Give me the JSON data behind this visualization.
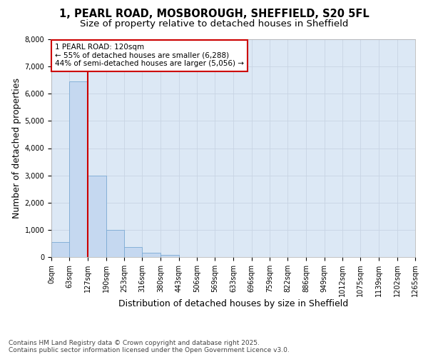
{
  "title_line1": "1, PEARL ROAD, MOSBOROUGH, SHEFFIELD, S20 5FL",
  "title_line2": "Size of property relative to detached houses in Sheffield",
  "xlabel": "Distribution of detached houses by size in Sheffield",
  "ylabel": "Number of detached properties",
  "bar_edges": [
    0,
    63,
    127,
    190,
    253,
    316,
    380,
    443,
    506,
    569,
    633,
    696,
    759,
    822,
    886,
    949,
    1012,
    1075,
    1139,
    1202,
    1265
  ],
  "bar_heights": [
    550,
    6450,
    3000,
    1000,
    380,
    150,
    80,
    0,
    0,
    0,
    0,
    0,
    0,
    0,
    0,
    0,
    0,
    0,
    0,
    0
  ],
  "bar_color": "#c5d8f0",
  "bar_edgecolor": "#7baad4",
  "grid_color": "#c8d4e4",
  "background_color": "#dce8f5",
  "fig_background": "#ffffff",
  "vline_x": 127,
  "vline_color": "#cc0000",
  "ylim": [
    0,
    8000
  ],
  "yticks": [
    0,
    1000,
    2000,
    3000,
    4000,
    5000,
    6000,
    7000,
    8000
  ],
  "annotation_title": "1 PEARL ROAD: 120sqm",
  "annotation_line1": "← 55% of detached houses are smaller (6,288)",
  "annotation_line2": "44% of semi-detached houses are larger (5,056) →",
  "annotation_box_color": "#cc0000",
  "footnote1": "Contains HM Land Registry data © Crown copyright and database right 2025.",
  "footnote2": "Contains public sector information licensed under the Open Government Licence v3.0.",
  "title_fontsize": 10.5,
  "subtitle_fontsize": 9.5,
  "axis_label_fontsize": 9,
  "tick_fontsize": 7,
  "annotation_fontsize": 7.5,
  "footnote_fontsize": 6.5
}
